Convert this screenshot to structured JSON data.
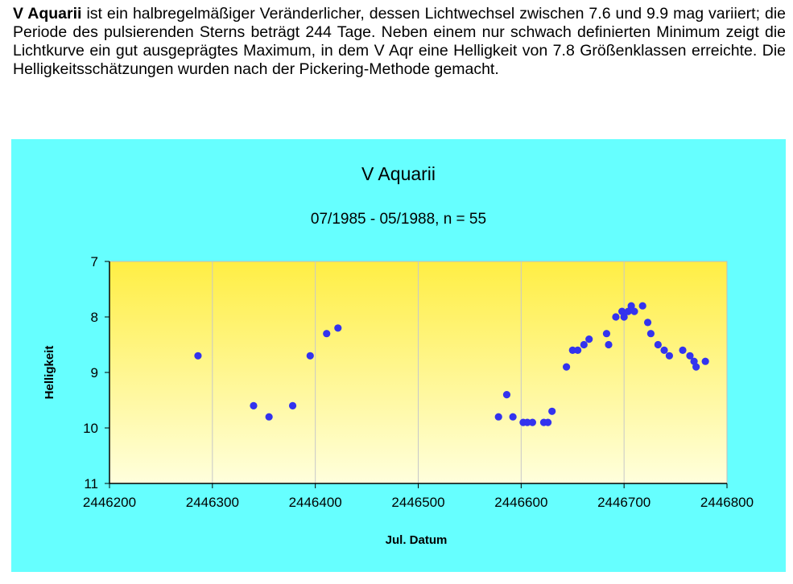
{
  "intro": {
    "star_name": "V Aquarii",
    "text": " ist ein halbregelmäßiger Veränderlicher, dessen Lichtwechsel zwischen 7.6 und 9.9 mag variiert; die Periode des pulsierenden Sterns beträgt 244 Tage. Neben einem nur schwach definierten Minimum zeigt die Lichtkurve ein gut ausgeprägtes Maximum, in dem V Aqr eine Helligkeit von 7.8 Größenklassen erreichte. Die Helligkeitsschätzungen wurden nach der Pickering-Methode gemacht."
  },
  "colors": {
    "panel_bg": "#66ffff",
    "plot_top": "#ffee44",
    "plot_bottom": "#ffffdd",
    "point": "#3333ee",
    "grid": "#c8c8c8"
  },
  "chart_data": {
    "type": "scatter",
    "title": "V Aquarii",
    "subtitle": "07/1985 - 05/1988, n = 55",
    "xlabel": "Jul. Datum",
    "ylabel": "Helligkeit",
    "xlim": [
      2446200,
      2446800
    ],
    "ylim": [
      7,
      11
    ],
    "y_inverted": true,
    "x_ticks": [
      2446200,
      2446300,
      2446400,
      2446500,
      2446600,
      2446700,
      2446800
    ],
    "x_tick_labels": [
      "2446200",
      "2446300",
      "2446400",
      "2446500",
      "2446600",
      "2446700",
      "2446800"
    ],
    "y_ticks": [
      7,
      8,
      9,
      10,
      11
    ],
    "y_tick_labels": [
      "7",
      "8",
      "9",
      "10",
      "11"
    ],
    "grid": true,
    "points": [
      [
        2446286,
        8.7
      ],
      [
        2446340,
        9.6
      ],
      [
        2446355,
        9.8
      ],
      [
        2446378,
        9.6
      ],
      [
        2446395,
        8.7
      ],
      [
        2446411,
        8.3
      ],
      [
        2446422,
        8.2
      ],
      [
        2446578,
        9.8
      ],
      [
        2446586,
        9.4
      ],
      [
        2446592,
        9.8
      ],
      [
        2446602,
        9.9
      ],
      [
        2446606,
        9.9
      ],
      [
        2446611,
        9.9
      ],
      [
        2446622,
        9.9
      ],
      [
        2446626,
        9.9
      ],
      [
        2446630,
        9.7
      ],
      [
        2446644,
        8.9
      ],
      [
        2446650,
        8.6
      ],
      [
        2446655,
        8.6
      ],
      [
        2446661,
        8.5
      ],
      [
        2446666,
        8.4
      ],
      [
        2446683,
        8.3
      ],
      [
        2446685,
        8.5
      ],
      [
        2446692,
        8.0
      ],
      [
        2446698,
        7.9
      ],
      [
        2446700,
        8.0
      ],
      [
        2446704,
        7.9
      ],
      [
        2446707,
        7.8
      ],
      [
        2446710,
        7.9
      ],
      [
        2446718,
        7.8
      ],
      [
        2446723,
        8.1
      ],
      [
        2446726,
        8.3
      ],
      [
        2446733,
        8.5
      ],
      [
        2446739,
        8.6
      ],
      [
        2446744,
        8.7
      ],
      [
        2446757,
        8.6
      ],
      [
        2446764,
        8.7
      ],
      [
        2446768,
        8.8
      ],
      [
        2446770,
        8.9
      ],
      [
        2446779,
        8.8
      ]
    ]
  }
}
